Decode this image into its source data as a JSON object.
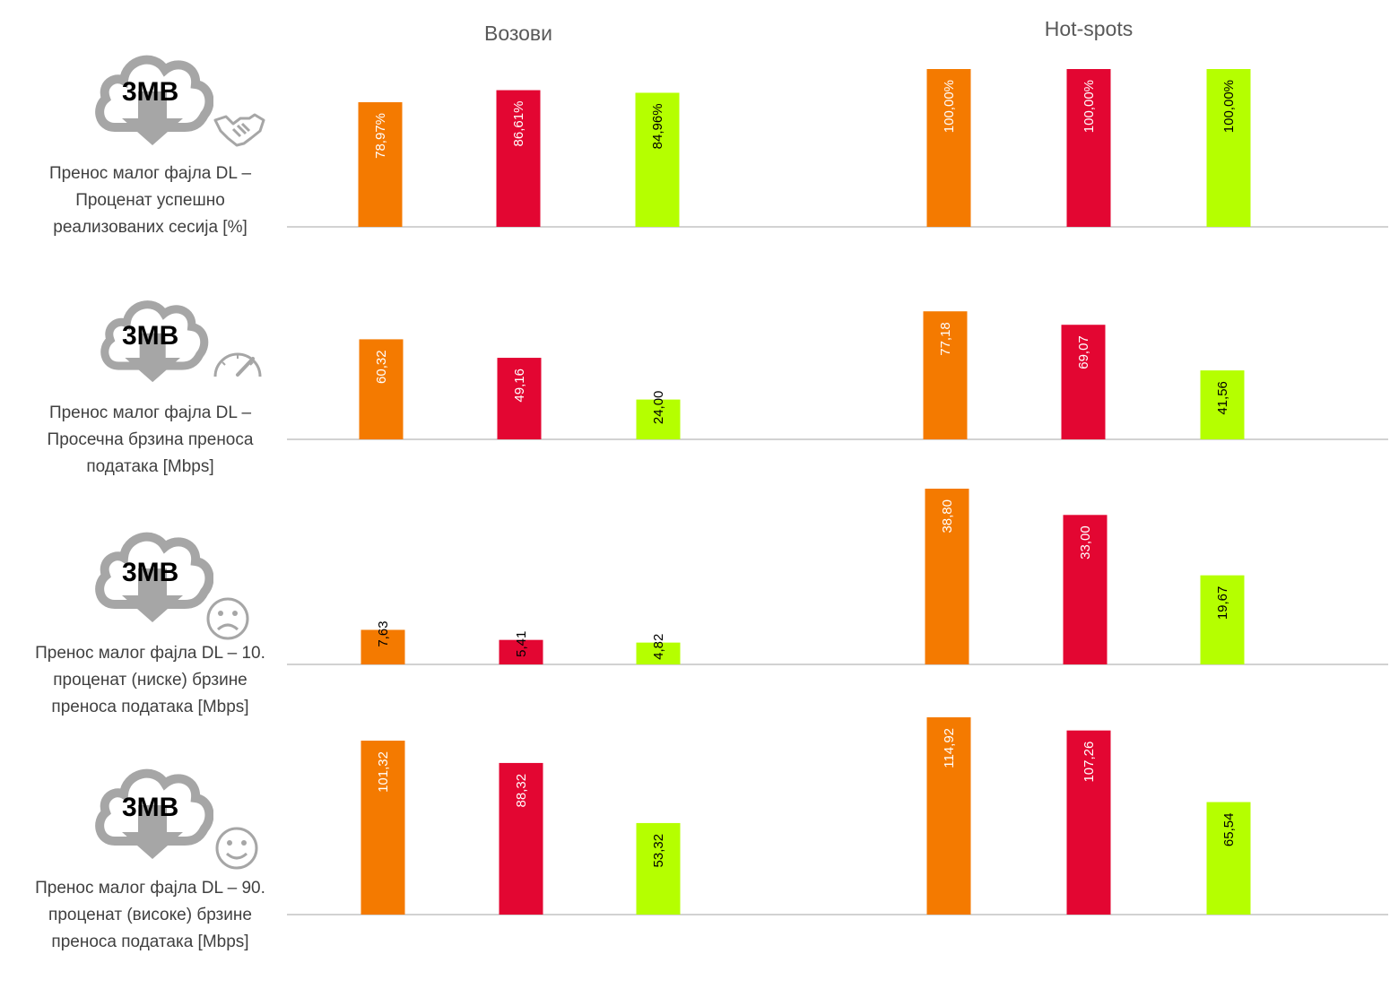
{
  "headers": {
    "left": "Возови",
    "right": "Hot-spots"
  },
  "icon_text": "3MB",
  "colors": {
    "orange": "#F47A00",
    "red": "#E30632",
    "green": "#B5FF00",
    "axis": "#A6A6A6",
    "icon": "#A6A6A6"
  },
  "chart_data": [
    {
      "type": "bar",
      "title": "Пренос малог фајла DL – Проценат успешно реализованих сесија [%]",
      "title_lines": [
        "Пренос малог фајла DL –",
        "Проценат успешно",
        "реализованих сесија [%]"
      ],
      "badge_icon": "handshake-icon",
      "groups": [
        {
          "name": "Возови",
          "values": [
            78.97,
            86.61,
            84.96
          ],
          "labels": [
            "78,97%",
            "86,61%",
            "84,96%"
          ]
        },
        {
          "name": "Hot-spots",
          "values": [
            100.0,
            100.0,
            100.0
          ],
          "labels": [
            "100,00%",
            "100,00%",
            "100,00%"
          ]
        }
      ]
    },
    {
      "type": "bar",
      "title": "Пренос малог фајла DL – Просечна брзина преноса података [Mbps]",
      "title_lines": [
        "Пренос малог фајла DL –",
        "Просечна брзина преноса",
        "података [Mbps]"
      ],
      "badge_icon": "speedometer-icon",
      "groups": [
        {
          "name": "Возови",
          "values": [
            60.32,
            49.16,
            24.0
          ],
          "labels": [
            "60,32",
            "49,16",
            "24,00"
          ]
        },
        {
          "name": "Hot-spots",
          "values": [
            77.18,
            69.07,
            41.56
          ],
          "labels": [
            "77,18",
            "69,07",
            "41,56"
          ]
        }
      ]
    },
    {
      "type": "bar",
      "title": "Пренос малог фајла DL – 10. проценат (ниске) брзине преноса података [Mbps]",
      "title_lines": [
        "Пренос малог фајла DL – 10.",
        "проценат (ниске) брзине",
        "преноса података [Mbps]"
      ],
      "badge_icon": "sad-face-icon",
      "groups": [
        {
          "name": "Возови",
          "values": [
            7.63,
            5.41,
            4.82
          ],
          "labels": [
            "7,63",
            "5,41",
            "4,82"
          ]
        },
        {
          "name": "Hot-spots",
          "values": [
            38.8,
            33.0,
            19.67
          ],
          "labels": [
            "38,80",
            "33,00",
            "19,67"
          ]
        }
      ]
    },
    {
      "type": "bar",
      "title": "Пренос малог фајла DL – 90. проценат (високе) брзине преноса података [Mbps]",
      "title_lines": [
        "Пренос малог фајла DL – 90.",
        "проценат (високе) брзине",
        "преноса података [Mbps]"
      ],
      "badge_icon": "happy-face-icon",
      "groups": [
        {
          "name": "Возови",
          "values": [
            101.32,
            88.32,
            53.32
          ],
          "labels": [
            "101,32",
            "88,32",
            "53,32"
          ]
        },
        {
          "name": "Hot-spots",
          "values": [
            114.92,
            107.26,
            65.54
          ],
          "labels": [
            "114,92",
            "107,26",
            "65,54"
          ]
        }
      ]
    }
  ]
}
